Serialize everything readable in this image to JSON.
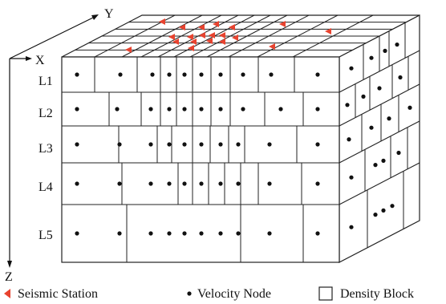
{
  "axes": {
    "x": "X",
    "y": "Y",
    "z": "Z"
  },
  "layers": [
    "L1",
    "L2",
    "L3",
    "L4",
    "L5"
  ],
  "legend": {
    "station": "Seismic Station",
    "node": "Velocity Node",
    "block": "Density Block"
  },
  "colors": {
    "station": "#e8432f",
    "line": "#222222",
    "node": "#111111"
  }
}
